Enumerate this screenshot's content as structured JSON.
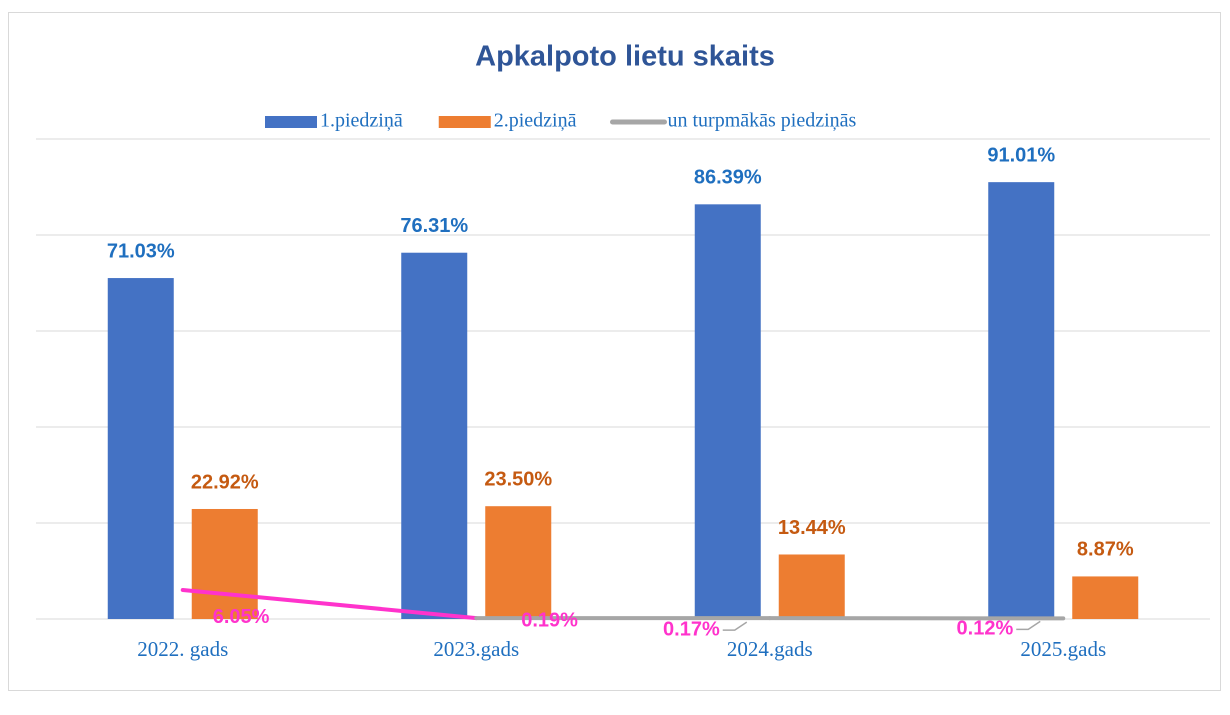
{
  "chart_data": {
    "type": "bar_line",
    "title": "Apkalpoto lietu skaits",
    "categories": [
      "2022. gads",
      "2023.gads",
      "2024.gads",
      "2025.gads"
    ],
    "series": [
      {
        "name": "1.piedziņā",
        "color": "#4472c4",
        "type": "bar",
        "values": [
          71.03,
          76.31,
          86.39,
          91.01
        ],
        "value_labels": [
          "71.03%",
          "76.31%",
          "86.39%",
          "91.01%"
        ],
        "label_color": "#1f6fbf"
      },
      {
        "name": "2.piedziņā",
        "color": "#ed7d31",
        "type": "bar",
        "values": [
          22.92,
          23.5,
          13.44,
          8.87
        ],
        "value_labels": [
          "22.92%",
          "23.50%",
          "13.44%",
          "8.87%"
        ],
        "label_color": "#c55a11"
      },
      {
        "name": "un turpmākās piedziņās",
        "color": "#a6a6a6",
        "type": "line",
        "values": [
          6.05,
          0.19,
          0.17,
          0.12
        ],
        "value_labels": [
          "6.05%",
          "0.19%",
          "0.17%",
          "0.12%"
        ],
        "label_color": "#ff33cc",
        "first_segment_color": "#ff33cc"
      }
    ],
    "ylim": [
      0,
      100
    ],
    "yticks": [
      0,
      20,
      40,
      60,
      80,
      100
    ],
    "grid": true,
    "legend": "top"
  }
}
